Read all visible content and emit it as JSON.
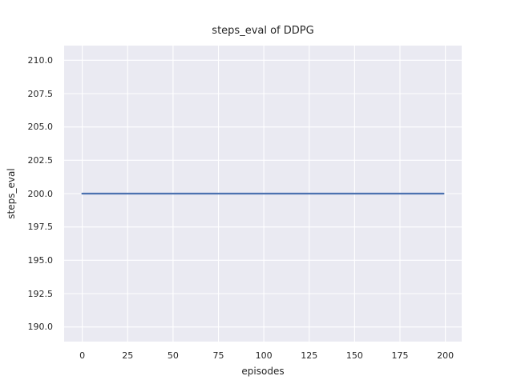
{
  "figure": {
    "background": "#ffffff",
    "plot_background": "#eaeaf2",
    "grid_color": "#ffffff",
    "text_color": "#262626"
  },
  "chart_data": {
    "type": "line",
    "title": "steps_eval of DDPG",
    "xlabel": "episodes",
    "ylabel": "steps_eval",
    "xlim": [
      -10,
      209
    ],
    "ylim": [
      188.9,
      211.1
    ],
    "xtick_labels": [
      "0",
      "25",
      "50",
      "75",
      "100",
      "125",
      "150",
      "175",
      "200"
    ],
    "ytick_labels": [
      "190.0",
      "192.5",
      "195.0",
      "197.5",
      "200.0",
      "202.5",
      "205.0",
      "207.5",
      "210.0"
    ],
    "grid": true,
    "legend_position": "none",
    "series": [
      {
        "name": "DDPG",
        "color": "#4c72b0",
        "line_width": 2.3,
        "x": [
          0,
          199
        ],
        "y": [
          200,
          200
        ]
      }
    ]
  }
}
